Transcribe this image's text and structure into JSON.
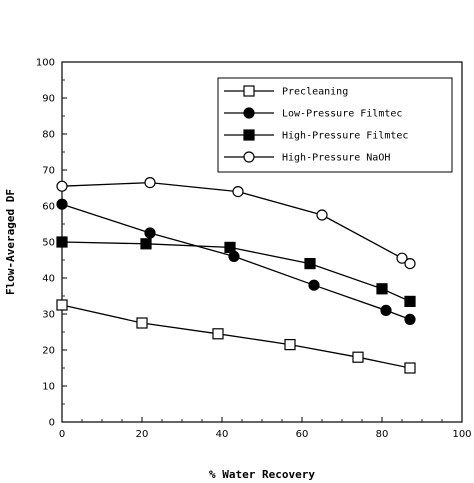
{
  "chart_data": {
    "type": "line",
    "title": "",
    "xlabel": "% Water Recovery",
    "ylabel": "Flow-Averaged DF",
    "xlim": [
      0,
      100
    ],
    "ylim": [
      0,
      100
    ],
    "x_ticks": [
      "0",
      "20",
      "40",
      "60",
      "80",
      "100"
    ],
    "y_ticks": [
      "0",
      "10",
      "20",
      "30",
      "40",
      "50",
      "60",
      "70",
      "80",
      "90",
      "100"
    ],
    "legend_position": "top-right",
    "grid": false,
    "series": [
      {
        "name": "Precleaning",
        "marker": "open-square",
        "x": [
          0,
          20,
          39,
          57,
          74,
          87
        ],
        "y": [
          32.5,
          27.5,
          24.5,
          21.5,
          18,
          15
        ]
      },
      {
        "name": "Low-Pressure Filmtec",
        "marker": "filled-circle",
        "x": [
          0,
          22,
          43,
          63,
          81,
          87
        ],
        "y": [
          60.5,
          52.5,
          46,
          38,
          31,
          28.5
        ]
      },
      {
        "name": "High-Pressure Filmtec",
        "marker": "filled-square",
        "x": [
          0,
          21,
          42,
          62,
          80,
          87
        ],
        "y": [
          50,
          49.5,
          48.5,
          44,
          37,
          33.5
        ]
      },
      {
        "name": "High-Pressure NaOH",
        "marker": "open-circle",
        "x": [
          0,
          22,
          44,
          65,
          85,
          87
        ],
        "y": [
          65.5,
          66.5,
          64,
          57.5,
          45.5,
          44
        ]
      }
    ]
  }
}
